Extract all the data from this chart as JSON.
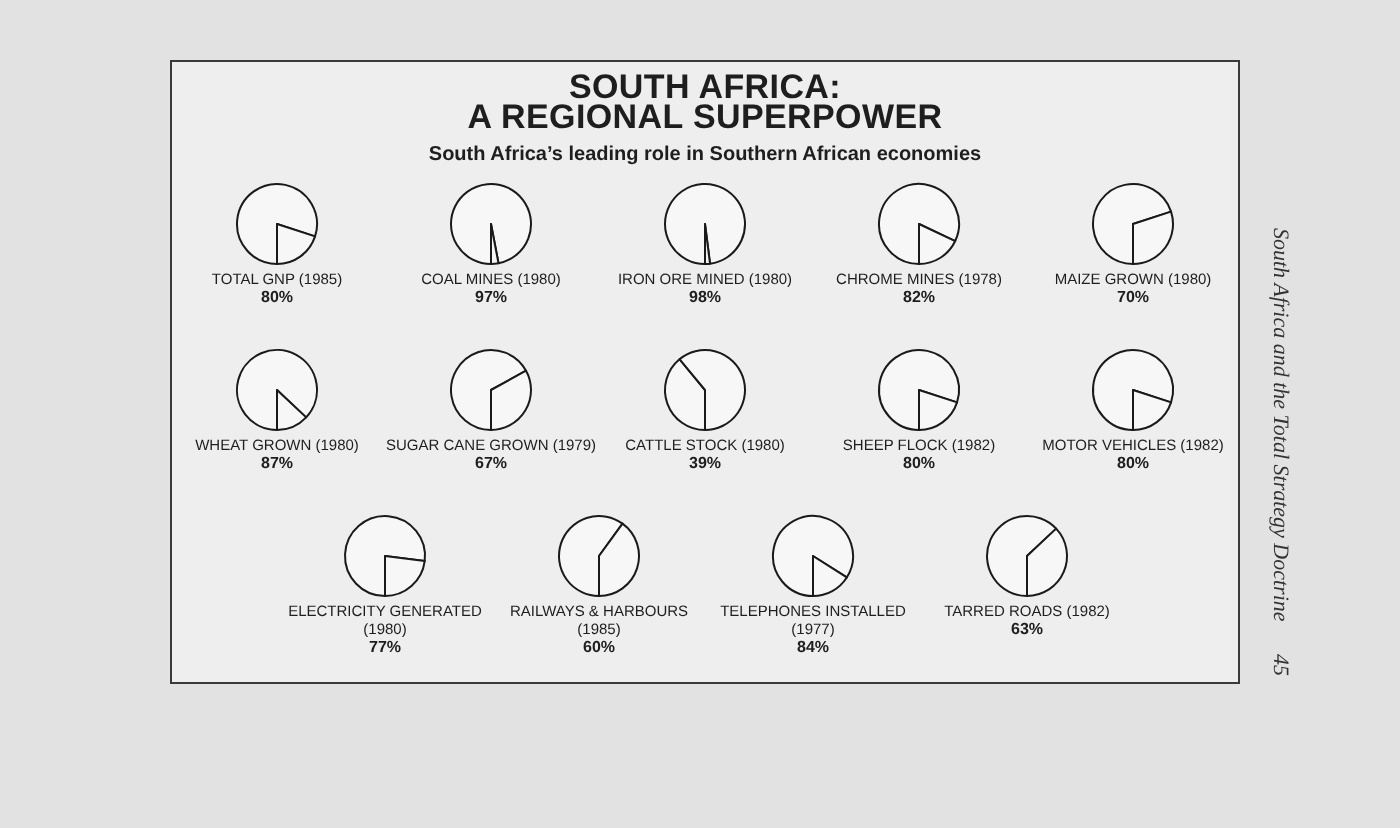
{
  "chart_data": [
    {
      "type": "other",
      "title": "SOUTH AFRICA: A REGIONAL SUPERPOWER",
      "subtitle": "South Africa’s leading role in Southern African economies",
      "annotations": [
        "South Africa and the Total Strategy Doctrine",
        "45"
      ]
    },
    {
      "type": "pie",
      "title": "TOTAL GNP (1985)",
      "categories": [
        null,
        null
      ],
      "values": [
        80,
        20
      ],
      "value_labels": [
        "80%",
        null
      ],
      "colors": [
        "#f7f7f7",
        "#f7f7f7"
      ]
    },
    {
      "type": "pie",
      "title": "COAL MINES (1980)",
      "categories": [
        null,
        null
      ],
      "values": [
        97,
        3
      ],
      "value_labels": [
        "97%",
        null
      ],
      "colors": [
        "#f7f7f7",
        "#f7f7f7"
      ]
    },
    {
      "type": "pie",
      "title": "IRON ORE MINED (1980)",
      "categories": [
        null,
        null
      ],
      "values": [
        98,
        2
      ],
      "value_labels": [
        "98%",
        null
      ],
      "colors": [
        "#f7f7f7",
        "#f7f7f7"
      ]
    },
    {
      "type": "pie",
      "title": "CHROME MINES (1978)",
      "categories": [
        null,
        null
      ],
      "values": [
        82,
        18
      ],
      "value_labels": [
        "82%",
        null
      ],
      "colors": [
        "#f7f7f7",
        "#f7f7f7"
      ]
    },
    {
      "type": "pie",
      "title": "MAIZE GROWN (1980)",
      "categories": [
        null,
        null
      ],
      "values": [
        70,
        30
      ],
      "value_labels": [
        "70%",
        null
      ],
      "colors": [
        "#f7f7f7",
        "#f7f7f7"
      ]
    },
    {
      "type": "pie",
      "title": "WHEAT GROWN (1980)",
      "categories": [
        null,
        null
      ],
      "values": [
        87,
        13
      ],
      "value_labels": [
        "87%",
        null
      ],
      "colors": [
        "#f7f7f7",
        "#f7f7f7"
      ]
    },
    {
      "type": "pie",
      "title": "SUGAR CANE GROWN (1979)",
      "categories": [
        null,
        null
      ],
      "values": [
        67,
        33
      ],
      "value_labels": [
        "67%",
        null
      ],
      "colors": [
        "#f7f7f7",
        "#f7f7f7"
      ]
    },
    {
      "type": "pie",
      "title": "CATTLE STOCK (1980)",
      "categories": [
        null,
        null
      ],
      "values": [
        39,
        61
      ],
      "value_labels": [
        "39%",
        null
      ],
      "colors": [
        "#f7f7f7",
        "#f7f7f7"
      ]
    },
    {
      "type": "pie",
      "title": "SHEEP FLOCK (1982)",
      "categories": [
        null,
        null
      ],
      "values": [
        80,
        20
      ],
      "value_labels": [
        "80%",
        null
      ],
      "colors": [
        "#f7f7f7",
        "#f7f7f7"
      ]
    },
    {
      "type": "pie",
      "title": "MOTOR VEHICLES (1982)",
      "categories": [
        null,
        null
      ],
      "values": [
        80,
        20
      ],
      "value_labels": [
        "80%",
        null
      ],
      "colors": [
        "#f7f7f7",
        "#f7f7f7"
      ]
    },
    {
      "type": "pie",
      "title": "ELECTRICITY GENERATED (1980)",
      "categories": [
        null,
        null
      ],
      "values": [
        77,
        23
      ],
      "value_labels": [
        "77%",
        null
      ],
      "colors": [
        "#f7f7f7",
        "#f7f7f7"
      ]
    },
    {
      "type": "pie",
      "title": "RAILWAYS & HARBOURS (1985)",
      "categories": [
        null,
        null
      ],
      "values": [
        60,
        40
      ],
      "value_labels": [
        "60%",
        null
      ],
      "colors": [
        "#f7f7f7",
        "#f7f7f7"
      ]
    },
    {
      "type": "pie",
      "title": "TELEPHONES INSTALLED (1977)",
      "categories": [
        null,
        null
      ],
      "values": [
        84,
        16
      ],
      "value_labels": [
        "84%",
        null
      ],
      "colors": [
        "#f7f7f7",
        "#f7f7f7"
      ]
    },
    {
      "type": "pie",
      "title": "TARRED ROADS (1982)",
      "categories": [
        null,
        null
      ],
      "values": [
        63,
        37
      ],
      "value_labels": [
        "63%",
        null
      ],
      "colors": [
        "#f7f7f7",
        "#f7f7f7"
      ]
    }
  ]
}
